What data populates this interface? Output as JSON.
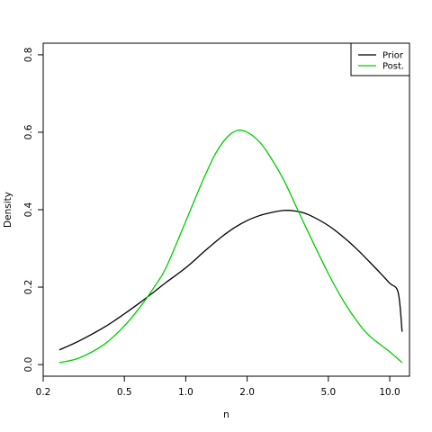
{
  "chart_data": {
    "type": "line",
    "title": "",
    "xlabel": "n",
    "ylabel": "Density",
    "xscale": "log",
    "xlim": [
      0.2,
      12.5
    ],
    "ylim": [
      -0.03,
      0.83
    ],
    "x_ticks": [
      0.2,
      0.5,
      1.0,
      2.0,
      5.0,
      10.0
    ],
    "x_tick_labels": [
      "0.2",
      "0.5",
      "1.0",
      "2.0",
      "5.0",
      "10.0"
    ],
    "y_ticks": [
      0.0,
      0.2,
      0.4,
      0.6,
      0.8
    ],
    "y_tick_labels": [
      "0.0",
      "0.2",
      "0.4",
      "0.6",
      "0.8"
    ],
    "grid": false,
    "legend_position": "top-right",
    "series": [
      {
        "name": "Prior",
        "color": "#000000",
        "x": [
          0.24,
          0.3,
          0.4,
          0.5,
          0.6,
          0.7,
          0.8,
          1.0,
          1.25,
          1.5,
          1.75,
          2.0,
          2.25,
          2.5,
          3.0,
          3.5,
          4.0,
          5.0,
          6.0,
          7.0,
          8.0,
          9.0,
          10.0,
          11.0,
          11.5
        ],
        "y": [
          0.038,
          0.061,
          0.097,
          0.131,
          0.161,
          0.188,
          0.212,
          0.25,
          0.295,
          0.33,
          0.355,
          0.372,
          0.383,
          0.39,
          0.398,
          0.396,
          0.387,
          0.359,
          0.327,
          0.295,
          0.264,
          0.236,
          0.21,
          0.186,
          0.085
        ]
      },
      {
        "name": "Post.",
        "color": "#00cc00",
        "x": [
          0.24,
          0.3,
          0.4,
          0.5,
          0.6,
          0.7,
          0.8,
          1.0,
          1.2,
          1.4,
          1.6,
          1.8,
          2.0,
          2.25,
          2.5,
          3.0,
          3.5,
          4.0,
          5.0,
          6.0,
          7.0,
          8.0,
          10.0,
          11.5
        ],
        "y": [
          0.005,
          0.017,
          0.053,
          0.1,
          0.15,
          0.2,
          0.25,
          0.37,
          0.47,
          0.545,
          0.588,
          0.605,
          0.6,
          0.58,
          0.55,
          0.48,
          0.405,
          0.34,
          0.235,
          0.16,
          0.108,
          0.073,
          0.033,
          0.005
        ]
      }
    ]
  }
}
